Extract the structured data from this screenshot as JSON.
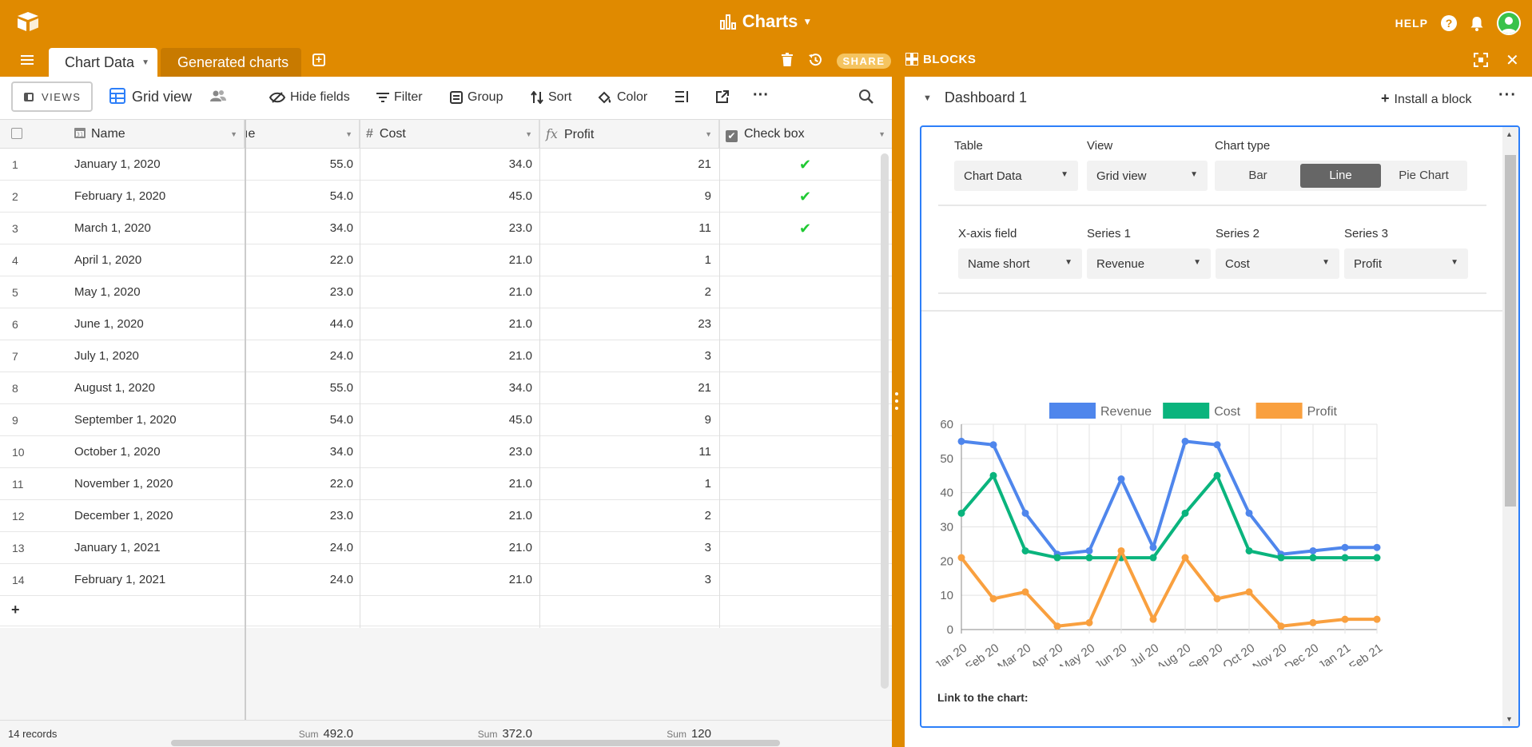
{
  "app": {
    "base_title": "Charts",
    "help_label": "HELP",
    "help_icon": "?"
  },
  "tabs": {
    "items": [
      {
        "label": "Chart Data"
      },
      {
        "label": "Generated charts"
      }
    ],
    "share_label": "SHARE",
    "blocks_label": "BLOCKS"
  },
  "viewbar": {
    "views_label": "VIEWS",
    "view_name": "Grid view",
    "hide_fields": "Hide fields",
    "filter": "Filter",
    "group": "Group",
    "sort": "Sort",
    "color": "Color"
  },
  "grid": {
    "columns": {
      "name": "Name",
      "revenue_partial": "ıe",
      "cost": "Cost",
      "profit": "Profit",
      "checkbox": "Check box"
    },
    "rows": [
      {
        "num": "1",
        "name": "January 1, 2020",
        "revenue": "55.0",
        "cost": "34.0",
        "profit": "21",
        "check": "✔"
      },
      {
        "num": "2",
        "name": "February 1, 2020",
        "revenue": "54.0",
        "cost": "45.0",
        "profit": "9",
        "check": "✔"
      },
      {
        "num": "3",
        "name": "March 1, 2020",
        "revenue": "34.0",
        "cost": "23.0",
        "profit": "11",
        "check": "✔"
      },
      {
        "num": "4",
        "name": "April 1, 2020",
        "revenue": "22.0",
        "cost": "21.0",
        "profit": "1",
        "check": ""
      },
      {
        "num": "5",
        "name": "May 1, 2020",
        "revenue": "23.0",
        "cost": "21.0",
        "profit": "2",
        "check": ""
      },
      {
        "num": "6",
        "name": "June 1, 2020",
        "revenue": "44.0",
        "cost": "21.0",
        "profit": "23",
        "check": ""
      },
      {
        "num": "7",
        "name": "July 1, 2020",
        "revenue": "24.0",
        "cost": "21.0",
        "profit": "3",
        "check": ""
      },
      {
        "num": "8",
        "name": "August 1, 2020",
        "revenue": "55.0",
        "cost": "34.0",
        "profit": "21",
        "check": ""
      },
      {
        "num": "9",
        "name": "September 1, 2020",
        "revenue": "54.0",
        "cost": "45.0",
        "profit": "9",
        "check": ""
      },
      {
        "num": "10",
        "name": "October 1, 2020",
        "revenue": "34.0",
        "cost": "23.0",
        "profit": "11",
        "check": ""
      },
      {
        "num": "11",
        "name": "November 1, 2020",
        "revenue": "22.0",
        "cost": "21.0",
        "profit": "1",
        "check": ""
      },
      {
        "num": "12",
        "name": "December 1, 2020",
        "revenue": "23.0",
        "cost": "21.0",
        "profit": "2",
        "check": ""
      },
      {
        "num": "13",
        "name": "January 1, 2021",
        "revenue": "24.0",
        "cost": "21.0",
        "profit": "3",
        "check": ""
      },
      {
        "num": "14",
        "name": "February 1, 2021",
        "revenue": "24.0",
        "cost": "21.0",
        "profit": "3",
        "check": ""
      }
    ],
    "add_row": "+",
    "footer": {
      "records": "14 records",
      "sum_label": "Sum",
      "sum_revenue": "492.0",
      "sum_cost": "372.0",
      "sum_profit": "120"
    }
  },
  "dashboard": {
    "title": "Dashboard 1",
    "install_label": "Install a block",
    "install_plus": "+",
    "more": "···",
    "settings": {
      "table_label": "Table",
      "table_value": "Chart Data",
      "view_label": "View",
      "view_value": "Grid view",
      "chart_type_label": "Chart type",
      "chart_types": [
        "Bar",
        "Line",
        "Pie Chart"
      ],
      "x_axis_label": "X-axis field",
      "x_axis_value": "Name short",
      "series1_label": "Series 1",
      "series1_value": "Revenue",
      "series2_label": "Series 2",
      "series2_value": "Cost",
      "series3_label": "Series 3",
      "series3_value": "Profit"
    },
    "link_label": "Link to the chart:"
  },
  "colors": {
    "brand": "#e08a00",
    "revenue": "#4f86ec",
    "cost": "#0ab47d",
    "profit": "#f9a03f",
    "accent": "#2d7ff9"
  },
  "chart_data": {
    "type": "line",
    "categories": [
      "Jan 20",
      "Feb 20",
      "Mar 20",
      "Apr 20",
      "May 20",
      "Jun 20",
      "Jul 20",
      "Aug 20",
      "Sep 20",
      "Oct 20",
      "Nov 20",
      "Dec 20",
      "Jan 21",
      "Feb 21"
    ],
    "series": [
      {
        "name": "Revenue",
        "color": "#4f86ec",
        "values": [
          55,
          54,
          34,
          22,
          23,
          44,
          24,
          55,
          54,
          34,
          22,
          23,
          24,
          24
        ]
      },
      {
        "name": "Cost",
        "color": "#0ab47d",
        "values": [
          34,
          45,
          23,
          21,
          21,
          21,
          21,
          34,
          45,
          23,
          21,
          21,
          21,
          21
        ]
      },
      {
        "name": "Profit",
        "color": "#f9a03f",
        "values": [
          21,
          9,
          11,
          1,
          2,
          23,
          3,
          21,
          9,
          11,
          1,
          2,
          3,
          3
        ]
      }
    ],
    "ylim": [
      0,
      60
    ],
    "yticks": [
      0,
      10,
      20,
      30,
      40,
      50,
      60
    ],
    "legend": "top",
    "grid": true
  }
}
